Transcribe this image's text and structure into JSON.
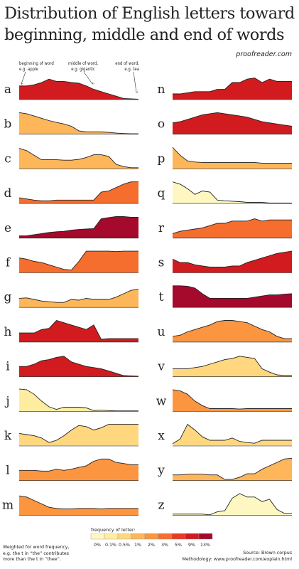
{
  "title_line1": "Distribution of English letters toward",
  "title_line2": "beginning, middle and end of words",
  "brand": "proofreader.com",
  "hints": {
    "beginning": [
      "beginning of word",
      "e.g. apple"
    ],
    "middle": [
      "middle of word,",
      "e.g. gigantic"
    ],
    "end": [
      "end of word,",
      "e.g. tea"
    ]
  },
  "legend": {
    "title": "frequency of letter:",
    "labels": [
      "0%",
      "0.1%",
      "0.5%",
      "1%",
      "2%",
      "3%",
      "5%",
      "9%",
      "13%"
    ],
    "colors": [
      "#fff7c2",
      "#feeda0",
      "#fed77e",
      "#fdb65a",
      "#fc9540",
      "#f56e2e",
      "#e93a22",
      "#d11b1f",
      "#a50a2c"
    ]
  },
  "note": [
    "Weighted for word frequency,",
    "e.g. the t in “the” contributes",
    "more than the t in “thee”."
  ],
  "source": [
    "Source: Brown corpus",
    "Methodology: www.proofreader.com/explain.html"
  ],
  "chart_data": {
    "type": "area",
    "title": "Distribution of English letters toward beginning, middle and end of words",
    "x_description": "position in word (beginning to end)",
    "y_scale": "relative, per letter (0 to 1)",
    "x": [
      0,
      0.0625,
      0.125,
      0.1875,
      0.25,
      0.3125,
      0.375,
      0.4375,
      0.5,
      0.5625,
      0.625,
      0.6875,
      0.75,
      0.8125,
      0.875,
      0.9375,
      1
    ],
    "series": [
      {
        "name": "a",
        "color": "#d11b1f",
        "values": [
          0.6,
          0.6,
          0.65,
          0.75,
          0.9,
          0.8,
          0.8,
          0.75,
          0.72,
          0.6,
          0.45,
          0.35,
          0.25,
          0.15,
          0.05,
          0.03,
          0.02
        ]
      },
      {
        "name": "b",
        "color": "#fdb65a",
        "values": [
          0.95,
          0.9,
          0.8,
          0.7,
          0.6,
          0.52,
          0.45,
          0.35,
          0.15,
          0.1,
          0.1,
          0.1,
          0.08,
          0.05,
          0.03,
          0.02,
          0.02
        ]
      },
      {
        "name": "c",
        "color": "#fdb65a",
        "values": [
          0.9,
          0.8,
          0.6,
          0.4,
          0.4,
          0.4,
          0.38,
          0.38,
          0.42,
          0.5,
          0.62,
          0.62,
          0.55,
          0.2,
          0.1,
          0.05,
          0.05
        ]
      },
      {
        "name": "d",
        "color": "#f56e2e",
        "values": [
          0.25,
          0.2,
          0.15,
          0.12,
          0.12,
          0.15,
          0.15,
          0.15,
          0.15,
          0.15,
          0.15,
          0.5,
          0.55,
          0.7,
          0.85,
          0.95,
          0.95
        ]
      },
      {
        "name": "e",
        "color": "#a50a2c",
        "values": [
          0.1,
          0.1,
          0.15,
          0.2,
          0.25,
          0.28,
          0.3,
          0.35,
          0.38,
          0.4,
          0.42,
          0.85,
          0.9,
          0.95,
          0.95,
          0.92,
          0.92
        ]
      },
      {
        "name": "f",
        "color": "#f56e2e",
        "values": [
          0.65,
          0.6,
          0.5,
          0.45,
          0.35,
          0.25,
          0.15,
          0.12,
          0.5,
          0.95,
          0.95,
          0.95,
          0.95,
          0.93,
          0.95,
          0.95,
          0.95
        ]
      },
      {
        "name": "g",
        "color": "#fdb65a",
        "values": [
          0.4,
          0.42,
          0.35,
          0.28,
          0.25,
          0.22,
          0.22,
          0.35,
          0.32,
          0.4,
          0.35,
          0.35,
          0.35,
          0.45,
          0.6,
          0.75,
          0.8
        ]
      },
      {
        "name": "h",
        "color": "#d11b1f",
        "values": [
          0.4,
          0.4,
          0.4,
          0.55,
          0.6,
          0.95,
          0.85,
          0.75,
          0.65,
          0.55,
          0.75,
          0.12,
          0.15,
          0.15,
          0.15,
          0.15,
          0.15
        ]
      },
      {
        "name": "i",
        "color": "#d11b1f",
        "values": [
          0.45,
          0.45,
          0.55,
          0.7,
          0.75,
          0.85,
          0.9,
          0.65,
          0.55,
          0.45,
          0.4,
          0.35,
          0.25,
          0.15,
          0.05,
          0.03,
          0.02
        ]
      },
      {
        "name": "j",
        "color": "#feeda0",
        "values": [
          0.98,
          0.95,
          0.75,
          0.45,
          0.2,
          0.08,
          0.18,
          0.18,
          0.18,
          0.15,
          0.03,
          0.05,
          0.03,
          0.02,
          0.02,
          0.02,
          0.02
        ]
      },
      {
        "name": "k",
        "color": "#fed77e",
        "values": [
          0.55,
          0.5,
          0.45,
          0.35,
          0.15,
          0.25,
          0.45,
          0.7,
          0.9,
          0.85,
          0.7,
          0.8,
          0.95,
          0.95,
          0.95,
          0.95,
          0.95
        ]
      },
      {
        "name": "l",
        "color": "#fc9540",
        "values": [
          0.45,
          0.45,
          0.45,
          0.42,
          0.42,
          0.5,
          0.45,
          0.5,
          0.58,
          0.65,
          0.85,
          0.95,
          0.95,
          0.8,
          0.75,
          0.7,
          0.7
        ]
      },
      {
        "name": "m",
        "color": "#fc9540",
        "values": [
          0.85,
          0.8,
          0.65,
          0.5,
          0.35,
          0.3,
          0.28,
          0.28,
          0.3,
          0.3,
          0.3,
          0.28,
          0.3,
          0.3,
          0.3,
          0.3,
          0.3
        ]
      },
      {
        "name": "n",
        "color": "#d11b1f",
        "values": [
          0.25,
          0.25,
          0.3,
          0.35,
          0.35,
          0.35,
          0.45,
          0.45,
          0.75,
          0.75,
          0.9,
          0.95,
          0.75,
          0.9,
          0.8,
          0.8,
          0.8
        ]
      },
      {
        "name": "o",
        "color": "#d11b1f",
        "values": [
          0.5,
          0.55,
          0.65,
          0.75,
          0.85,
          0.9,
          0.95,
          0.9,
          0.85,
          0.8,
          0.75,
          0.65,
          0.55,
          0.5,
          0.45,
          0.4,
          0.35
        ]
      },
      {
        "name": "p",
        "color": "#fdb65a",
        "values": [
          0.95,
          0.6,
          0.35,
          0.3,
          0.28,
          0.28,
          0.28,
          0.28,
          0.28,
          0.28,
          0.28,
          0.28,
          0.25,
          0.25,
          0.25,
          0.25,
          0.25
        ]
      },
      {
        "name": "q",
        "color": "#fff7c2",
        "values": [
          0.95,
          0.85,
          0.65,
          0.4,
          0.55,
          0.5,
          0.15,
          0.12,
          0.1,
          0.08,
          0.05,
          0.05,
          0.05,
          0.02,
          0.02,
          0.02,
          0.02
        ]
      },
      {
        "name": "r",
        "color": "#f56e2e",
        "values": [
          0.2,
          0.3,
          0.35,
          0.4,
          0.45,
          0.55,
          0.65,
          0.65,
          0.75,
          0.75,
          0.75,
          0.85,
          0.75,
          0.8,
          0.8,
          0.8,
          0.8
        ]
      },
      {
        "name": "s",
        "color": "#d11b1f",
        "values": [
          0.6,
          0.45,
          0.45,
          0.35,
          0.3,
          0.25,
          0.25,
          0.25,
          0.3,
          0.3,
          0.45,
          0.55,
          0.65,
          0.75,
          0.85,
          0.9,
          0.95
        ]
      },
      {
        "name": "t",
        "color": "#a50a2c",
        "values": [
          0.95,
          0.95,
          0.93,
          0.85,
          0.6,
          0.4,
          0.4,
          0.4,
          0.4,
          0.4,
          0.4,
          0.45,
          0.5,
          0.55,
          0.55,
          0.58,
          0.6
        ]
      },
      {
        "name": "u",
        "color": "#fc9540",
        "values": [
          0.25,
          0.3,
          0.45,
          0.55,
          0.65,
          0.75,
          0.9,
          0.95,
          0.95,
          0.9,
          0.85,
          0.7,
          0.55,
          0.45,
          0.25,
          0.15,
          0.15
        ]
      },
      {
        "name": "v",
        "color": "#fed77e",
        "values": [
          0.35,
          0.35,
          0.35,
          0.4,
          0.45,
          0.55,
          0.65,
          0.75,
          0.8,
          0.9,
          0.85,
          0.8,
          0.35,
          0.2,
          0.08,
          0.05,
          0.05
        ]
      },
      {
        "name": "w",
        "color": "#fc9540",
        "values": [
          0.95,
          0.9,
          0.75,
          0.45,
          0.25,
          0.12,
          0.12,
          0.12,
          0.12,
          0.1,
          0.12,
          0.12,
          0.12,
          0.12,
          0.12,
          0.12,
          0.12
        ]
      },
      {
        "name": "x",
        "color": "#fed77e",
        "values": [
          0.1,
          0.3,
          0.95,
          0.7,
          0.4,
          0.25,
          0.25,
          0.25,
          0.35,
          0.2,
          0.15,
          0.12,
          0.25,
          0.25,
          0.25,
          0.25,
          0.25
        ]
      },
      {
        "name": "y",
        "color": "#fdb65a",
        "values": [
          0.25,
          0.25,
          0.28,
          0.28,
          0.28,
          0.25,
          0.25,
          0.05,
          0.05,
          0.15,
          0.3,
          0.3,
          0.5,
          0.65,
          0.8,
          0.95,
          0.98
        ]
      },
      {
        "name": "z",
        "color": "#fff7c2",
        "values": [
          0.05,
          0.05,
          0.05,
          0.05,
          0.05,
          0.02,
          0.15,
          0.2,
          0.75,
          0.95,
          0.8,
          0.8,
          0.6,
          0.7,
          0.25,
          0.08,
          0.08
        ]
      }
    ]
  }
}
